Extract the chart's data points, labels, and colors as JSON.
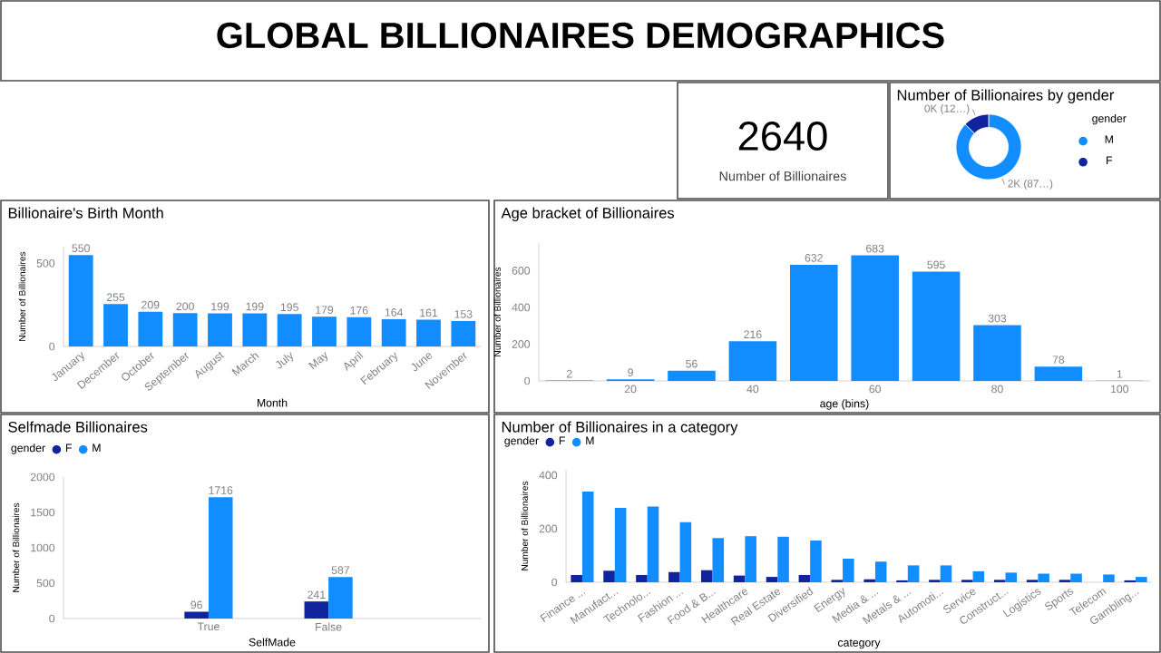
{
  "chart_data": [
    {
      "type": "other",
      "title": "GLOBAL BILLIONAIRES DEMOGRAPHICS"
    },
    {
      "type": "other",
      "annotations": [
        "2640",
        "Number of Billionaires"
      ]
    },
    {
      "type": "donut",
      "title": "Number of Billionaires by gender",
      "categories": [
        "M",
        "F"
      ],
      "values": [
        87.2,
        12.8
      ],
      "colors": [
        "#118dff",
        "#12239e"
      ],
      "value_labels": [
        "2K (87…)",
        "0K (12…)"
      ],
      "legend_title": "gender",
      "legend": "right"
    },
    {
      "type": "bar",
      "title": "Billionaire's Birth Month",
      "xlabel": "Month",
      "ylabel": "Number of Billionaires",
      "categories": [
        "January",
        "December",
        "October",
        "September",
        "August",
        "March",
        "July",
        "May",
        "April",
        "February",
        "June",
        "November"
      ],
      "values": [
        550,
        255,
        209,
        200,
        199,
        199,
        195,
        179,
        176,
        164,
        161,
        153
      ],
      "color": "#118dff",
      "ylim": [
        0,
        600
      ],
      "yticks": [
        0,
        500
      ],
      "data_labels": true
    },
    {
      "type": "histogram",
      "title": "Age bracket of Billionaires",
      "xlabel": "age (bins)",
      "ylabel": "Number of Billionaires",
      "bins": [
        5,
        15,
        25,
        35,
        45,
        55,
        65,
        75,
        85,
        95,
        105
      ],
      "values": [
        2,
        9,
        56,
        216,
        632,
        683,
        595,
        303,
        78,
        1
      ],
      "color": "#118dff",
      "xlim": [
        5,
        105
      ],
      "xticks": [
        20,
        40,
        60,
        80,
        100
      ],
      "ylim": [
        0,
        750
      ],
      "yticks": [
        0,
        200,
        400,
        600
      ],
      "data_labels": true
    },
    {
      "type": "bar",
      "title": "Selfmade Billionaires",
      "xlabel": "SelfMade",
      "ylabel": "Number of Billionaires",
      "legend_title": "gender",
      "legend": "top left",
      "categories": [
        "True",
        "False"
      ],
      "series": [
        {
          "name": "F",
          "color": "#12239e",
          "values": [
            96,
            241
          ]
        },
        {
          "name": "M",
          "color": "#118dff",
          "values": [
            1716,
            587
          ]
        }
      ],
      "ylim": [
        0,
        2000
      ],
      "yticks": [
        0,
        500,
        1000,
        1500,
        2000
      ],
      "data_labels": true
    },
    {
      "type": "bar",
      "title": "Number of Billionaires in a category",
      "xlabel": "category",
      "ylabel": "Number of Billionaires",
      "legend_title": "gender",
      "legend": "top left",
      "categories": [
        "Finance ...",
        "Manufact...",
        "Technolo...",
        "Fashion ...",
        "Food & B...",
        "Healthcare",
        "Real Estate",
        "Diversified",
        "Energy",
        "Media & ...",
        "Metals & ...",
        "Automoti...",
        "Service",
        "Construct...",
        "Logistics",
        "Sports",
        "Telecom",
        "Gambling..."
      ],
      "series": [
        {
          "name": "F",
          "color": "#12239e",
          "values": [
            27,
            43,
            27,
            38,
            45,
            25,
            20,
            27,
            9,
            11,
            7,
            9,
            9,
            9,
            9,
            9,
            null,
            7
          ]
        },
        {
          "name": "M",
          "color": "#118dff",
          "values": [
            339,
            278,
            283,
            224,
            165,
            172,
            170,
            156,
            88,
            77,
            63,
            63,
            41,
            36,
            32,
            32,
            29,
            20
          ]
        }
      ],
      "ylim": [
        0,
        420
      ],
      "yticks": [
        0,
        200,
        400
      ]
    }
  ]
}
